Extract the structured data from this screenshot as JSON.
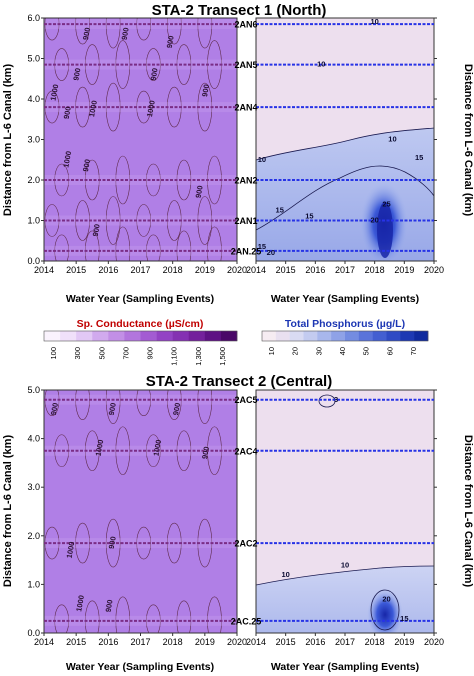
{
  "chart_data": [
    {
      "type": "heatmap",
      "title": "STA-2 Transect 1 (North)",
      "xlabel": "Water Year (Sampling Events)",
      "ylabel": "Distance from L-6 Canal (km)",
      "xlim": [
        2014,
        2020
      ],
      "ylim": [
        0.0,
        6.0
      ],
      "x_ticks": [
        "2014",
        "2015",
        "2016",
        "2017",
        "2018",
        "2019",
        "2020"
      ],
      "y_ticks": [
        "0.0",
        "1.0",
        "2.0",
        "3.0",
        "4.0",
        "5.0",
        "6.0"
      ],
      "stations": [
        {
          "name": "2AN6",
          "y": 5.85
        },
        {
          "name": "2AN5",
          "y": 4.85
        },
        {
          "name": "2AN4",
          "y": 3.8
        },
        {
          "name": "2AN2",
          "y": 2.0
        },
        {
          "name": "2AN1",
          "y": 1.0
        },
        {
          "name": "2AN.25",
          "y": 0.25
        }
      ],
      "panels": [
        {
          "variable": "Sp. Conductance",
          "contour_labels": [
            {
              "text": "900",
              "x": 2015.4,
              "y": 5.6
            },
            {
              "text": "900",
              "x": 2016.6,
              "y": 5.6
            },
            {
              "text": "900",
              "x": 2018.0,
              "y": 5.4
            },
            {
              "text": "900",
              "x": 2015.1,
              "y": 4.6
            },
            {
              "text": "900",
              "x": 2017.5,
              "y": 4.6
            },
            {
              "text": "900",
              "x": 2019.1,
              "y": 4.2
            },
            {
              "text": "1000",
              "x": 2014.4,
              "y": 4.15
            },
            {
              "text": "900",
              "x": 2014.8,
              "y": 3.65
            },
            {
              "text": "1000",
              "x": 2015.6,
              "y": 3.75
            },
            {
              "text": "1000",
              "x": 2017.4,
              "y": 3.75
            },
            {
              "text": "900",
              "x": 2015.4,
              "y": 2.35
            },
            {
              "text": "1000",
              "x": 2014.8,
              "y": 2.5
            },
            {
              "text": "900",
              "x": 2018.9,
              "y": 1.7
            },
            {
              "text": "900",
              "x": 2015.7,
              "y": 0.75
            }
          ]
        },
        {
          "variable": "Total Phosphorus",
          "contour_labels": [
            {
              "text": "10",
              "x": 2018.0,
              "y": 5.85
            },
            {
              "text": "10",
              "x": 2016.2,
              "y": 4.8
            },
            {
              "text": "10",
              "x": 2018.6,
              "y": 2.95
            },
            {
              "text": "10",
              "x": 2014.2,
              "y": 2.45
            },
            {
              "text": "15",
              "x": 2019.5,
              "y": 2.5
            },
            {
              "text": "15",
              "x": 2014.8,
              "y": 1.2
            },
            {
              "text": "15",
              "x": 2015.8,
              "y": 1.05
            },
            {
              "text": "20",
              "x": 2018.0,
              "y": 0.95
            },
            {
              "text": "25",
              "x": 2018.4,
              "y": 1.35
            },
            {
              "text": "20",
              "x": 2014.5,
              "y": 0.15
            },
            {
              "text": "15",
              "x": 2014.2,
              "y": 0.3
            }
          ]
        }
      ]
    },
    {
      "type": "heatmap",
      "title": "STA-2 Transect 2 (Central)",
      "xlabel": "Water Year (Sampling Events)",
      "ylabel": "Distance from L-6 Canal (km)",
      "xlim": [
        2014,
        2020
      ],
      "ylim": [
        0.0,
        5.0
      ],
      "x_ticks": [
        "2014",
        "2015",
        "2016",
        "2017",
        "2018",
        "2019",
        "2020"
      ],
      "y_ticks": [
        "0.0",
        "1.0",
        "2.0",
        "3.0",
        "4.0",
        "5.0"
      ],
      "stations": [
        {
          "name": "2AC5",
          "y": 4.8
        },
        {
          "name": "2AC4",
          "y": 3.75
        },
        {
          "name": "2AC2",
          "y": 1.85
        },
        {
          "name": "2AC.25",
          "y": 0.25
        }
      ],
      "panels": [
        {
          "variable": "Sp. Conductance",
          "contour_labels": [
            {
              "text": "900",
              "x": 2014.4,
              "y": 4.6
            },
            {
              "text": "900",
              "x": 2016.2,
              "y": 4.6
            },
            {
              "text": "900",
              "x": 2018.2,
              "y": 4.6
            },
            {
              "text": "1000",
              "x": 2015.8,
              "y": 3.8
            },
            {
              "text": "1000",
              "x": 2017.6,
              "y": 3.8
            },
            {
              "text": "900",
              "x": 2019.1,
              "y": 3.7
            },
            {
              "text": "900",
              "x": 2016.2,
              "y": 1.85
            },
            {
              "text": "1000",
              "x": 2014.9,
              "y": 1.7
            },
            {
              "text": "1000",
              "x": 2015.2,
              "y": 0.6
            },
            {
              "text": "900",
              "x": 2016.1,
              "y": 0.55
            }
          ]
        },
        {
          "variable": "Total Phosphorus",
          "contour_labels": [
            {
              "text": "3",
              "x": 2016.7,
              "y": 4.75
            },
            {
              "text": "10",
              "x": 2015.0,
              "y": 1.15
            },
            {
              "text": "10",
              "x": 2017.0,
              "y": 1.35
            },
            {
              "text": "20",
              "x": 2018.4,
              "y": 0.65
            },
            {
              "text": "15",
              "x": 2019.0,
              "y": 0.25
            }
          ]
        }
      ]
    }
  ],
  "colorbars": [
    {
      "title": "Sp. Conductance (µS/cm)",
      "ticks": [
        "100",
        "300",
        "500",
        "700",
        "900",
        "1,100",
        "1,300",
        "1,500"
      ],
      "colors": [
        "#faf3fd",
        "#f0e0fa",
        "#e2c8f5",
        "#d1aaee",
        "#c28fe6",
        "#b275dd",
        "#a35bd2",
        "#9343c4",
        "#8431b2",
        "#74209c",
        "#5e1184",
        "#4a0868"
      ]
    },
    {
      "title": "Total Phosphorus (µg/L)",
      "ticks": [
        "10",
        "20",
        "30",
        "40",
        "50",
        "60",
        "70"
      ],
      "colors": [
        "#f6ecf2",
        "#e9e0f0",
        "#d9dbf3",
        "#c3cbf0",
        "#a8b7ec",
        "#8fa2e7",
        "#748ce1",
        "#5a74da",
        "#435fd1",
        "#2f4bc4",
        "#1d39b3",
        "#0f2a9e"
      ]
    }
  ],
  "colors": {
    "sp_cond_field": "#b07fe6",
    "sp_cond_station_line": "#7a2d86",
    "tp_background": "#eddfee",
    "tp_station_line": "#2733e6",
    "contour_sp": "#5e2a4a",
    "contour_tp": "#1a1a50",
    "title_sp": "#c00000",
    "title_tp": "#1c36b3"
  }
}
